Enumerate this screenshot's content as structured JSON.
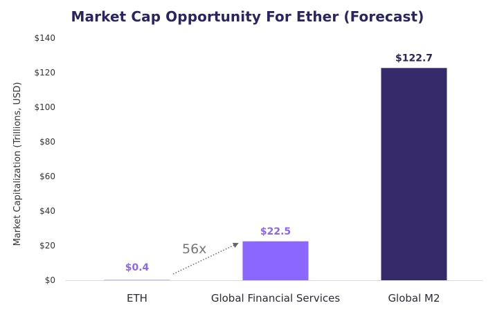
{
  "chart_data": {
    "type": "bar",
    "title": "Market Cap Opportunity For Ether (Forecast)",
    "xlabel": "",
    "ylabel": "Market Capitalization (Trillions, USD)",
    "categories": [
      "ETH",
      "Global Financial Services",
      "Global M2"
    ],
    "values": [
      0.4,
      22.5,
      122.7
    ],
    "data_labels": [
      "$0.4",
      "$22.5",
      "$122.7"
    ],
    "label_colors": [
      "#8b66f5",
      "#8b66f5",
      "#2b2556"
    ],
    "bar_colors": [
      "#cbbcf8",
      "#8b66ff",
      "#362a6b"
    ],
    "ylim": [
      0,
      140
    ],
    "yticks": [
      0,
      20,
      40,
      60,
      80,
      100,
      120,
      140
    ],
    "ytick_labels": [
      "$0",
      "$20",
      "$40",
      "$60",
      "$80",
      "$100",
      "$120",
      "$140"
    ],
    "grid": false,
    "annotation": {
      "text": "56x",
      "from_category": "ETH",
      "to_category": "Global Financial Services"
    }
  }
}
